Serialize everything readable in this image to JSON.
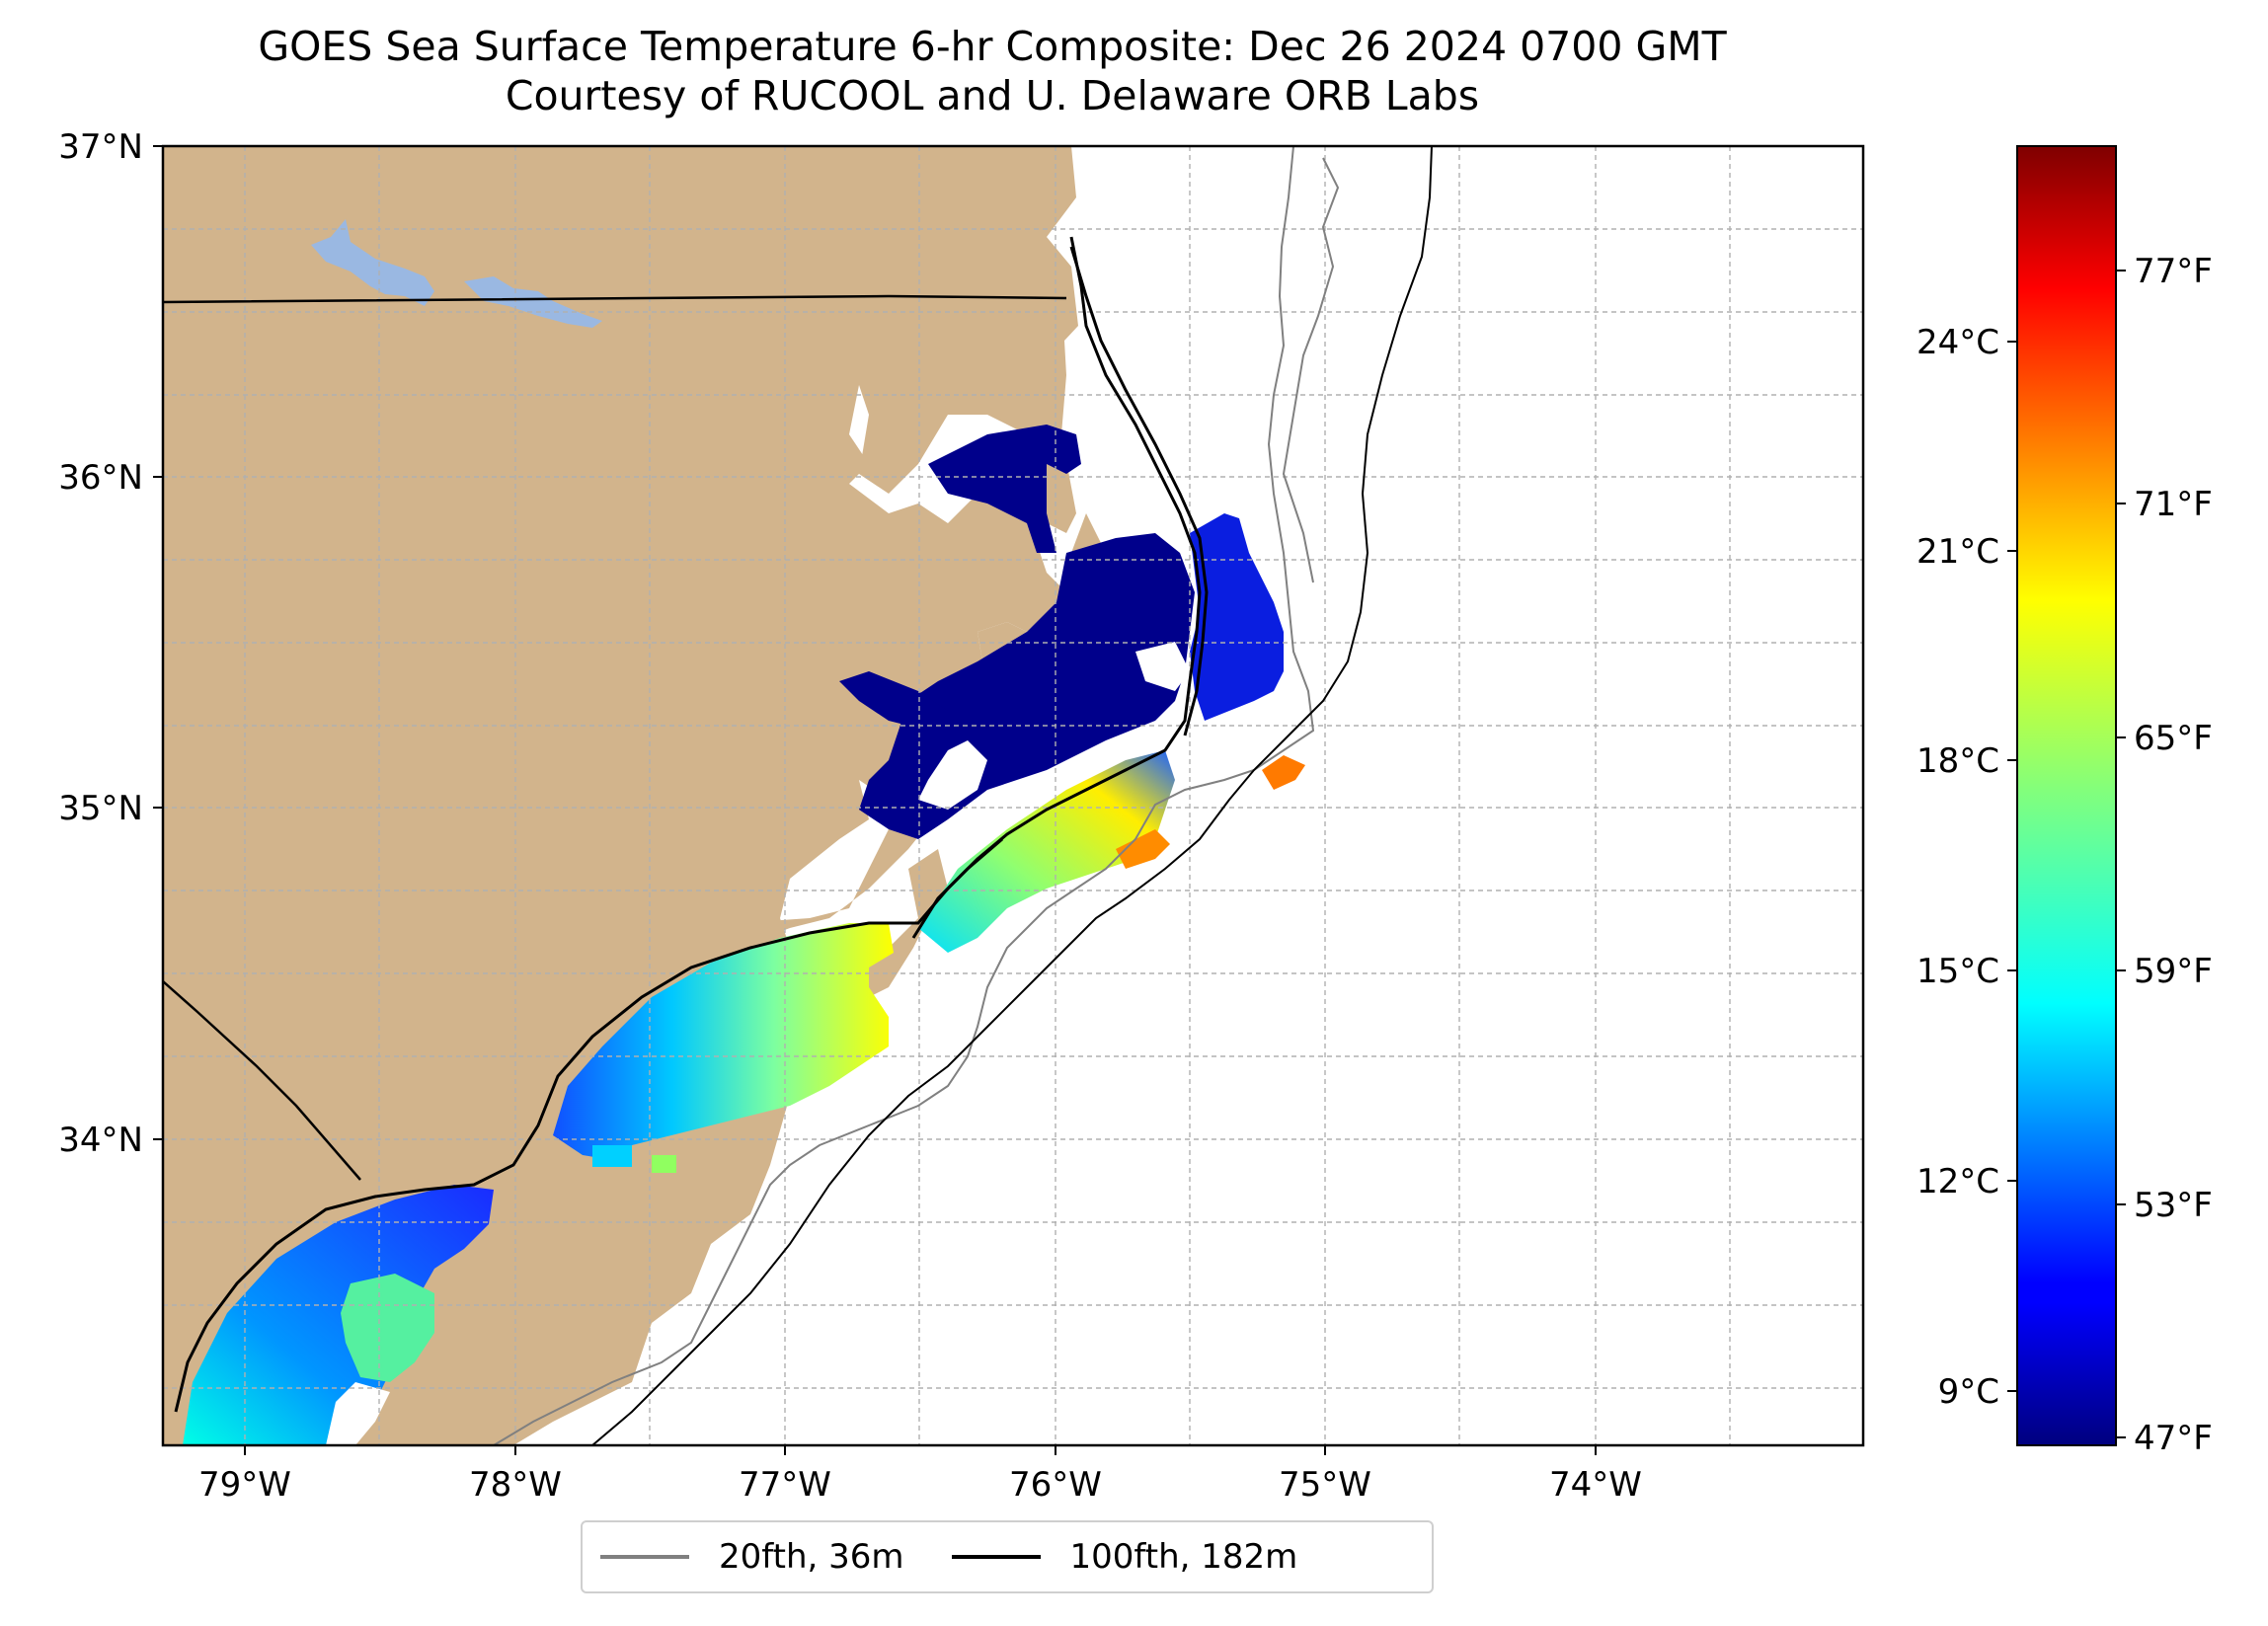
{
  "title": {
    "line1": "GOES Sea Surface Temperature 6-hr Composite: Dec 26 2024 0700 GMT",
    "line2": "Courtesy of RUCOOL and U. Delaware ORB Labs"
  },
  "map": {
    "lon_range": [
      -79.3,
      -73.0
    ],
    "lat_range": [
      33.1,
      37.0
    ],
    "lat_labels": [
      "37°N",
      "36°N",
      "35°N",
      "34°N"
    ],
    "lon_labels": [
      "79°W",
      "78°W",
      "77°W",
      "76°W",
      "75°W",
      "74°W"
    ],
    "land_color": "#d2b48c",
    "water_color": "#ffffff",
    "lake_color": "#9ab8e2",
    "grid": true
  },
  "legend": {
    "items": [
      {
        "label": "20fth, 36m",
        "color": "#808080"
      },
      {
        "label": "100fth, 182m",
        "color": "#000000"
      }
    ]
  },
  "colorbar": {
    "colormap": "jet",
    "celsius_range": [
      8.3,
      26.7
    ],
    "celsius_labels": [
      "24°C",
      "21°C",
      "18°C",
      "15°C",
      "12°C",
      "9°C"
    ],
    "fahrenheit_labels": [
      "77°F",
      "71°F",
      "65°F",
      "59°F",
      "53°F",
      "47°F"
    ]
  }
}
